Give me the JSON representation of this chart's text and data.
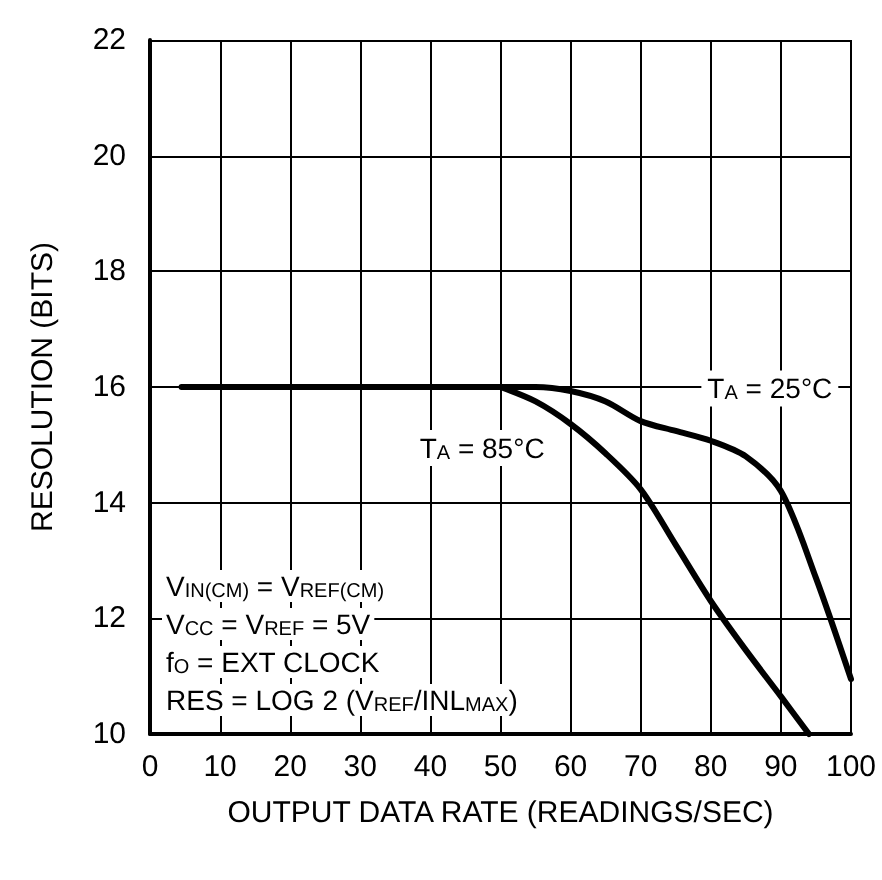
{
  "chart_data": {
    "type": "line",
    "xlabel": "OUTPUT DATA RATE (READINGS/SEC)",
    "ylabel": "RESOLUTION (BITS)",
    "xlim": [
      0,
      100
    ],
    "xticks": [
      0,
      10,
      20,
      30,
      40,
      50,
      60,
      70,
      80,
      90,
      100
    ],
    "ylim": [
      10,
      22
    ],
    "yticks": [
      10,
      12,
      14,
      16,
      18,
      20,
      22
    ],
    "grid": true,
    "marker": "none",
    "line_style": "solid",
    "series": [
      {
        "name": "T$_{A}$ = 25°C",
        "color": "#000000",
        "x": [
          4.5,
          10,
          20,
          30,
          40,
          50,
          55,
          60,
          65,
          70,
          75,
          80,
          85,
          90,
          95,
          100
        ],
        "values": [
          16,
          16,
          16,
          16,
          16,
          16,
          16,
          15.93,
          15.75,
          15.41,
          15.24,
          15.07,
          14.8,
          14.2,
          12.7,
          10.95
        ]
      },
      {
        "name": "T$_{A}$ = 85°C",
        "color": "#000000",
        "x": [
          50,
          55,
          60,
          65,
          70,
          75,
          80,
          85,
          90,
          94
        ],
        "values": [
          16,
          15.75,
          15.36,
          14.85,
          14.23,
          13.27,
          12.3,
          11.45,
          10.65,
          10
        ]
      }
    ],
    "annotations": [
      "V$_{IN(CM)}$ = V$_{REF(CM)}$",
      "V$_{CC}$ = V$_{REF}$ = 5V",
      "f$_{O}$ = EXT CLOCK",
      "RES = LOG 2 (V$_{REF}$/INL$_{MAX}$)"
    ]
  }
}
